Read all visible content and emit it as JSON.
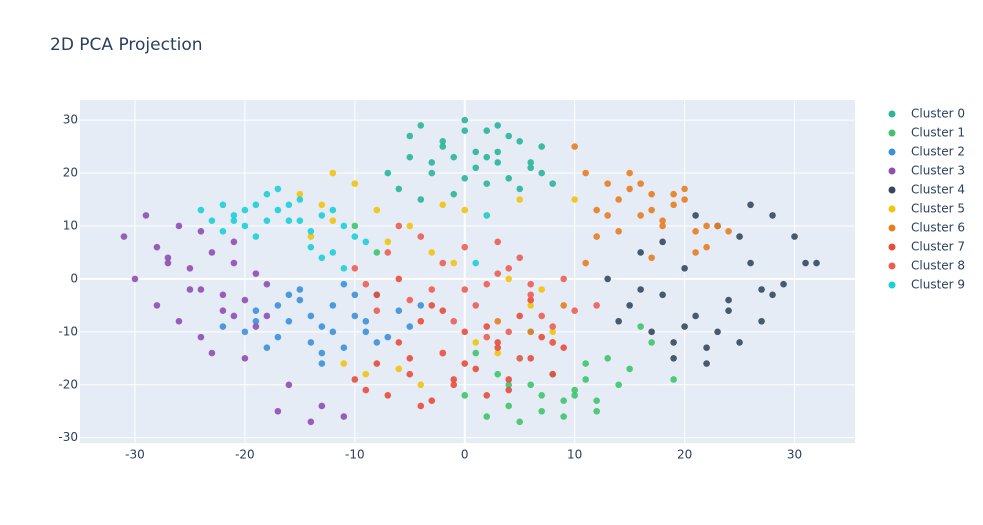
{
  "chart_data": {
    "type": "scatter",
    "title": "2D PCA Projection",
    "xlim": [
      -35,
      35.5
    ],
    "ylim": [
      -31,
      33.8
    ],
    "xticks": [
      -30,
      -20,
      -10,
      0,
      10,
      20,
      30
    ],
    "yticks": [
      -30,
      -20,
      -10,
      0,
      10,
      20,
      30
    ],
    "grid": true,
    "legend": "right",
    "series": [
      {
        "name": "Cluster 0",
        "color": "#2bb59a",
        "x": [
          -7,
          -5,
          -4,
          -3,
          -2,
          -1,
          0,
          1,
          2,
          3,
          4,
          5,
          6,
          7,
          8,
          -6,
          -3,
          0,
          2,
          4,
          6,
          -4,
          -1,
          1,
          3,
          5,
          -2,
          0,
          3,
          7,
          -5,
          2
        ],
        "values": [
          20,
          27,
          29,
          22,
          25,
          23,
          30,
          21,
          28,
          24,
          19,
          26,
          22,
          25,
          18,
          17,
          20,
          19,
          23,
          27,
          21,
          15,
          16,
          24,
          22,
          17,
          26,
          28,
          29,
          20,
          23,
          18
        ]
      },
      {
        "name": "Cluster 1",
        "color": "#3ec46d",
        "x": [
          0,
          2,
          4,
          5,
          6,
          7,
          8,
          9,
          10,
          11,
          12,
          13,
          15,
          17,
          19,
          3,
          5,
          7,
          9,
          11,
          14,
          16,
          1,
          6,
          8,
          10,
          -8,
          -10,
          4,
          12
        ],
        "values": [
          -22,
          -26,
          -24,
          -27,
          -20,
          -25,
          -18,
          -23,
          -21,
          -19,
          -25,
          -15,
          -17,
          -12,
          -19,
          -18,
          -15,
          -22,
          -26,
          -16,
          -20,
          -9,
          -14,
          -10,
          -12,
          -22,
          5,
          10,
          -20,
          -23
        ]
      },
      {
        "name": "Cluster 2",
        "color": "#3b91d8",
        "x": [
          -22,
          -20,
          -19,
          -18,
          -17,
          -16,
          -15,
          -14,
          -13,
          -12,
          -11,
          -10,
          -9,
          -8,
          -7,
          -6,
          -5,
          -15,
          -13,
          -11,
          -9,
          -17,
          -14,
          -12,
          -10,
          -8,
          -19,
          -16,
          -4,
          -13
        ],
        "values": [
          -9,
          -10,
          -6,
          -13,
          -11,
          -8,
          -4,
          -12,
          -9,
          -5,
          -13,
          -7,
          -10,
          -3,
          -11,
          -6,
          -9,
          -2,
          -14,
          -1,
          -8,
          -5,
          -7,
          -10,
          -3,
          -12,
          -8,
          -3,
          -5,
          -16
        ]
      },
      {
        "name": "Cluster 3",
        "color": "#8e4fb0",
        "x": [
          -31,
          -30,
          -29,
          -28,
          -27,
          -26,
          -25,
          -24,
          -23,
          -22,
          -21,
          -20,
          -19,
          -18,
          -28,
          -26,
          -24,
          -22,
          -20,
          -25,
          -23,
          -21,
          -19,
          -17,
          -16,
          -14,
          -13,
          -11,
          -24,
          -27,
          -21,
          -18
        ],
        "values": [
          8,
          0,
          12,
          6,
          4,
          10,
          2,
          -2,
          5,
          -6,
          7,
          -4,
          1,
          -1,
          -5,
          -8,
          -11,
          -3,
          -15,
          -2,
          -14,
          3,
          -9,
          -25,
          -20,
          -27,
          -24,
          -26,
          9,
          3,
          -7,
          -7
        ]
      },
      {
        "name": "Cluster 4",
        "color": "#34495e",
        "x": [
          13,
          14,
          15,
          16,
          17,
          18,
          19,
          20,
          21,
          22,
          23,
          24,
          25,
          26,
          27,
          28,
          29,
          30,
          31,
          32,
          16,
          18,
          20,
          22,
          24,
          26,
          28,
          21,
          23,
          25,
          19,
          27
        ],
        "values": [
          0,
          -8,
          -5,
          5,
          -10,
          -3,
          -12,
          2,
          -7,
          -16,
          10,
          -4,
          8,
          14,
          -2,
          12,
          -1,
          8,
          3,
          3,
          -2,
          7,
          -9,
          -13,
          -6,
          3,
          -3,
          12,
          -10,
          -12,
          -15,
          -8
        ]
      },
      {
        "name": "Cluster 5",
        "color": "#f1c40f",
        "x": [
          -15,
          -13,
          -12,
          -10,
          -8,
          -7,
          -5,
          -3,
          -2,
          0,
          2,
          4,
          6,
          8,
          10,
          -11,
          -6,
          -4,
          -1,
          1,
          3,
          -9,
          -12,
          5,
          7,
          -14
        ],
        "values": [
          16,
          14,
          20,
          18,
          13,
          7,
          10,
          5,
          14,
          13,
          12,
          0,
          -5,
          -10,
          15,
          -16,
          -17,
          -20,
          3,
          -12,
          -14,
          -18,
          11,
          15,
          -2,
          8
        ]
      },
      {
        "name": "Cluster 6",
        "color": "#e67e22",
        "x": [
          10,
          11,
          12,
          13,
          14,
          15,
          16,
          17,
          18,
          19,
          20,
          21,
          22,
          23,
          13,
          15,
          17,
          19,
          21,
          12,
          14,
          16,
          18,
          20,
          11,
          9,
          8,
          6,
          3,
          24,
          22,
          17
        ],
        "values": [
          25,
          20,
          13,
          18,
          15,
          17,
          12,
          16,
          10,
          14,
          17,
          9,
          6,
          10,
          12,
          20,
          13,
          16,
          5,
          8,
          9,
          18,
          11,
          15,
          3,
          -5,
          -12,
          -10,
          -8,
          9,
          10,
          4
        ]
      },
      {
        "name": "Cluster 7",
        "color": "#e74c3c",
        "x": [
          -10,
          -9,
          -8,
          -7,
          -6,
          -5,
          -4,
          -3,
          -2,
          -1,
          0,
          1,
          2,
          3,
          4,
          5,
          6,
          7,
          8,
          9,
          -8,
          -6,
          -4,
          -2,
          0,
          2,
          4,
          6,
          -5,
          -1,
          3,
          -3
        ],
        "values": [
          -19,
          -21,
          -16,
          -22,
          -12,
          -18,
          -8,
          -23,
          -14,
          -20,
          -10,
          -17,
          -22,
          -13,
          -19,
          -7,
          -15,
          -11,
          -18,
          -13,
          -3,
          0,
          -24,
          -6,
          -16,
          -9,
          -21,
          -4,
          -15,
          -19,
          -12,
          -5
        ]
      },
      {
        "name": "Cluster 8",
        "color": "#eb5e55",
        "x": [
          -10,
          -9,
          -7,
          -5,
          -4,
          -3,
          -2,
          -1,
          0,
          1,
          2,
          3,
          4,
          5,
          6,
          7,
          8,
          9,
          10,
          12,
          -6,
          -2,
          0,
          2,
          4,
          6,
          8,
          -8,
          5,
          3
        ],
        "values": [
          2,
          -1,
          5,
          -4,
          8,
          -2,
          3,
          -8,
          6,
          -5,
          -1,
          1,
          -10,
          4,
          -3,
          -7,
          -12,
          0,
          -6,
          -5,
          10,
          -14,
          -2,
          -11,
          2,
          -1,
          -9,
          -6,
          -15,
          7
        ]
      },
      {
        "name": "Cluster 9",
        "color": "#1dcfd7",
        "x": [
          -24,
          -23,
          -22,
          -21,
          -20,
          -19,
          -18,
          -17,
          -16,
          -15,
          -14,
          -13,
          -12,
          -11,
          -10,
          -9,
          -22,
          -20,
          -18,
          -16,
          -14,
          -12,
          -21,
          -17,
          -13,
          -19,
          2,
          -15,
          -11,
          1
        ],
        "values": [
          13,
          11,
          14,
          12,
          10,
          14,
          16,
          13,
          11,
          15,
          9,
          12,
          5,
          10,
          8,
          7,
          9,
          13,
          11,
          14,
          6,
          13,
          11,
          17,
          4,
          8,
          12,
          11,
          2,
          3
        ]
      }
    ]
  }
}
